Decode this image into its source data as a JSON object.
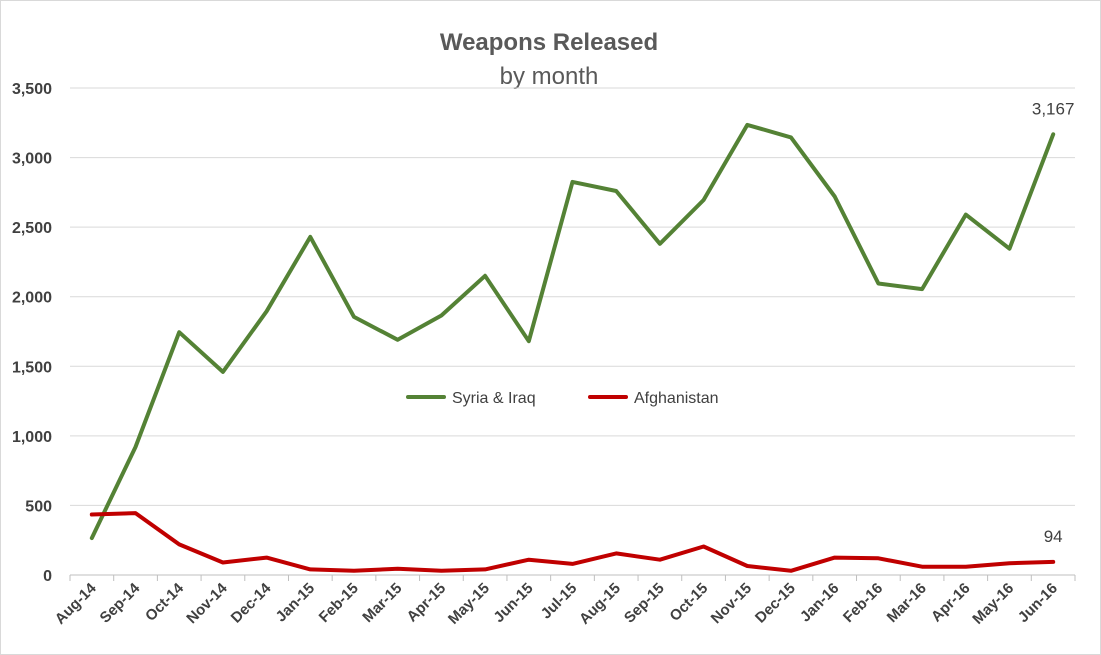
{
  "chart_data": {
    "type": "line",
    "title": "Weapons Released",
    "subtitle": "by month",
    "xlabel": "",
    "ylabel": "",
    "ylim": [
      0,
      3500
    ],
    "yticks": [
      0,
      500,
      1000,
      1500,
      2000,
      2500,
      3000,
      3500
    ],
    "ytick_labels": [
      "0",
      "500",
      "1,000",
      "1,500",
      "2,000",
      "2,500",
      "3,000",
      "3,500"
    ],
    "grid": "horizontal",
    "legend_position": "center",
    "categories": [
      "Aug-14",
      "Sep-14",
      "Oct-14",
      "Nov-14",
      "Dec-14",
      "Jan-15",
      "Feb-15",
      "Mar-15",
      "Apr-15",
      "May-15",
      "Jun-15",
      "Jul-15",
      "Aug-15",
      "Sep-15",
      "Oct-15",
      "Nov-15",
      "Dec-15",
      "Jan-16",
      "Feb-16",
      "Mar-16",
      "Apr-16",
      "May-16",
      "Jun-16"
    ],
    "series": [
      {
        "name": "Syria & Iraq",
        "color": "#548235",
        "values": [
          265,
          920,
          1745,
          1460,
          1895,
          2430,
          1855,
          1690,
          1865,
          2150,
          1680,
          2825,
          2760,
          2380,
          2695,
          3235,
          3145,
          2720,
          2095,
          2055,
          2590,
          2345,
          3167
        ],
        "end_label": "3,167"
      },
      {
        "name": "Afghanistan",
        "color": "#c00000",
        "values": [
          435,
          445,
          220,
          90,
          125,
          40,
          30,
          45,
          30,
          40,
          110,
          80,
          155,
          110,
          205,
          65,
          30,
          125,
          120,
          60,
          60,
          85,
          94
        ],
        "end_label": "94"
      }
    ]
  }
}
